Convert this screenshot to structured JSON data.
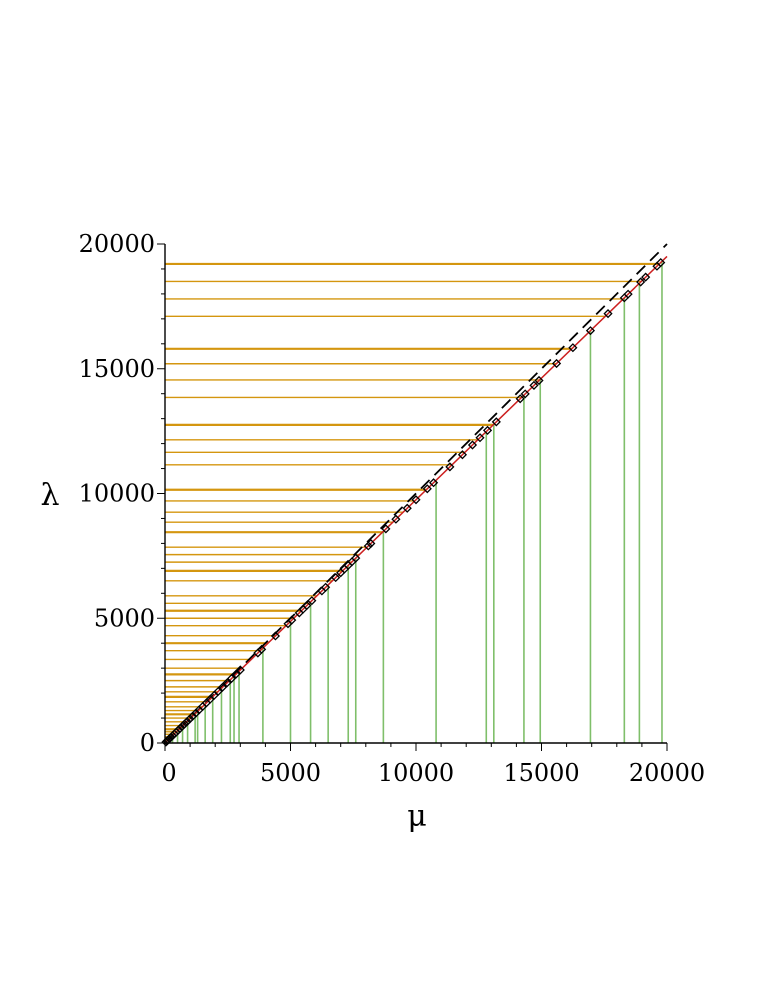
{
  "chart_data": {
    "type": "line",
    "xlabel": "μ",
    "ylabel": "λ",
    "xlim": [
      0,
      20000
    ],
    "ylim": [
      0,
      20000
    ],
    "x_ticks": [
      0,
      5000,
      10000,
      15000,
      20000
    ],
    "y_ticks": [
      0,
      5000,
      10000,
      15000,
      20000
    ],
    "x_tick_labels": [
      "0",
      "5000",
      "10000",
      "15000",
      "20000"
    ],
    "y_tick_labels": [
      "0",
      "5000",
      "10000",
      "15000",
      "20000"
    ],
    "grid": false,
    "colors": {
      "horizontal_lines": "#d4960f",
      "vertical_lines": "#7fbf6a",
      "fit_line": "#cc1f1f",
      "reference_line": "#000000",
      "markers": "#000000"
    },
    "series": [
      {
        "style": "dashed",
        "color": "#000000",
        "x": [
          0,
          20000
        ],
        "y": [
          0,
          20000
        ]
      },
      {
        "style": "solid",
        "color": "#cc1f1f",
        "x": [
          0,
          20000
        ],
        "y": [
          0,
          19500
        ]
      }
    ],
    "markers": {
      "shape": "open-square",
      "mu": [
        40,
        80,
        130,
        180,
        240,
        300,
        370,
        440,
        520,
        600,
        690,
        780,
        880,
        990,
        1100,
        1230,
        1360,
        1500,
        1650,
        1800,
        1960,
        2120,
        2290,
        2470,
        2650,
        2830,
        3000,
        3700,
        3850,
        4400,
        4900,
        5050,
        5350,
        5500,
        5650,
        5850,
        6250,
        6400,
        6800,
        7000,
        7150,
        7300,
        7450,
        7600,
        8100,
        8200,
        8800,
        9200,
        9650,
        10000,
        10450,
        10700,
        11350,
        11850,
        12250,
        12550,
        12850,
        13200,
        14150,
        14350,
        14700,
        14900,
        15600,
        16250,
        16950,
        17650,
        18300,
        18450,
        18950,
        19150,
        19600,
        19750
      ],
      "lambda": [
        39,
        78,
        127,
        176,
        234,
        293,
        361,
        429,
        507,
        585,
        673,
        761,
        858,
        965,
        1073,
        1199,
        1326,
        1463,
        1609,
        1755,
        1911,
        2067,
        2233,
        2408,
        2584,
        2759,
        2925,
        3608,
        3754,
        4290,
        4778,
        4924,
        5216,
        5363,
        5509,
        5704,
        6094,
        6240,
        6630,
        6825,
        6971,
        7118,
        7264,
        7410,
        7898,
        7995,
        8580,
        8970,
        9409,
        9750,
        10189,
        10433,
        11066,
        11554,
        11944,
        12236,
        12529,
        12870,
        13796,
        13991,
        14333,
        14528,
        15210,
        15844,
        16526,
        17209,
        17843,
        17989,
        18476,
        18671,
        19110,
        19256
      ]
    },
    "horizontal_levels": [
      150,
      250,
      350,
      450,
      550,
      700,
      850,
      1000,
      1150,
      1300,
      1450,
      1650,
      1850,
      2050,
      2250,
      2500,
      2750,
      3000,
      3350,
      3700,
      4000,
      4300,
      4700,
      5000,
      5300,
      5600,
      5900,
      6500,
      6900,
      7250,
      7550,
      7850,
      8450,
      8850,
      9250,
      9700,
      10150,
      11150,
      11650,
      12150,
      12750,
      13850,
      14550,
      15200,
      15800,
      17100,
      17800,
      18500,
      19200
    ],
    "vertical_positions": [
      150,
      300,
      500,
      700,
      900,
      1200,
      1300,
      1600,
      1900,
      2250,
      2600,
      2750,
      2950,
      3900,
      5000,
      5800,
      6500,
      7300,
      7600,
      8700,
      10800,
      12800,
      13100,
      14300,
      14950,
      16950,
      18300,
      18900,
      19800
    ]
  }
}
